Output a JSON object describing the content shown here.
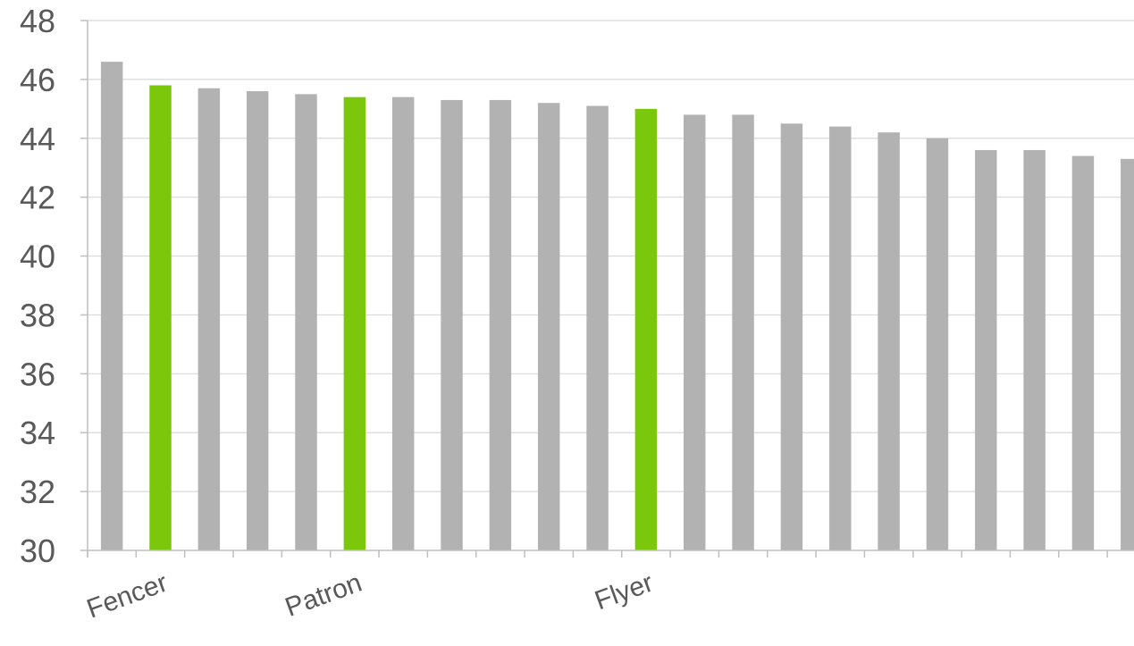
{
  "chart_data": {
    "type": "bar",
    "title": "",
    "xlabel": "",
    "ylabel": "",
    "ylim": [
      30,
      48
    ],
    "yticks": [
      30,
      32,
      34,
      36,
      38,
      40,
      42,
      44,
      46,
      48
    ],
    "grid": true,
    "categories": [
      "",
      "Fencer",
      "",
      "",
      "",
      "Patron",
      "",
      "",
      "",
      "",
      "",
      "Flyer",
      "",
      "",
      "",
      "",
      "",
      "",
      "",
      "",
      "",
      ""
    ],
    "values": [
      46.6,
      45.8,
      45.7,
      45.6,
      45.5,
      45.4,
      45.4,
      45.3,
      45.3,
      45.2,
      45.1,
      45.0,
      44.8,
      44.8,
      44.5,
      44.4,
      44.2,
      44.0,
      43.6,
      43.6,
      43.4,
      43.3
    ],
    "highlighted": [
      false,
      true,
      false,
      false,
      false,
      true,
      false,
      false,
      false,
      false,
      false,
      true,
      false,
      false,
      false,
      false,
      false,
      false,
      false,
      false,
      false,
      false
    ],
    "colors": {
      "bar": "#b2b2b2",
      "highlight": "#7ac70c"
    }
  }
}
